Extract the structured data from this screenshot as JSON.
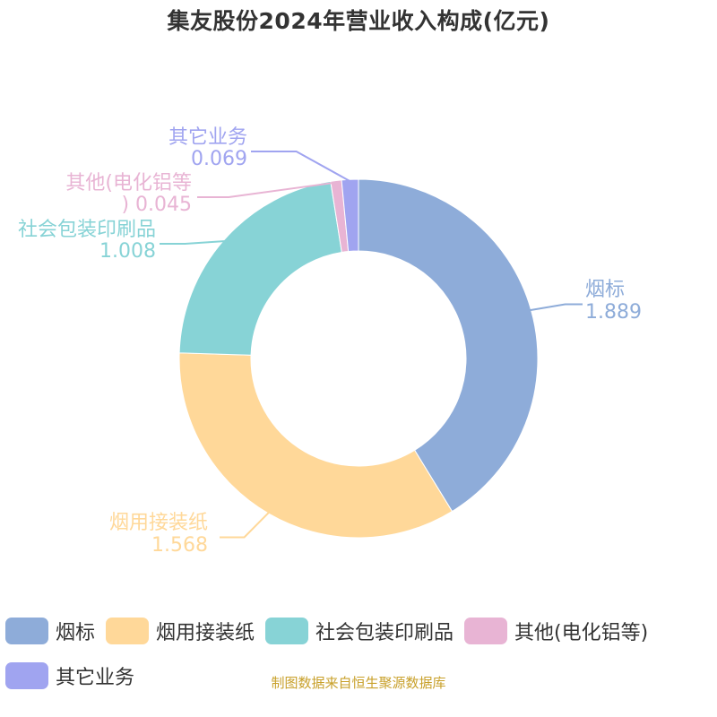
{
  "title": "集友股份2024年营业收入构成(亿元)",
  "source": "制图数据来自恒生聚源数据库",
  "chart_data": {
    "type": "pie",
    "variant": "donut",
    "title": "集友股份2024年营业收入构成(亿元)",
    "series": [
      {
        "name": "烟标",
        "value": 1.889,
        "color": "#8eacd9",
        "label_lines": [
          "烟标",
          "1.889"
        ]
      },
      {
        "name": "烟用接装纸",
        "value": 1.568,
        "color": "#ffd899",
        "label_lines": [
          "烟用接装纸",
          "1.568"
        ]
      },
      {
        "name": "社会包装印刷品",
        "value": 1.008,
        "color": "#87d3d6",
        "label_lines": [
          "社会包装印刷品",
          "1.008"
        ]
      },
      {
        "name": "其他(电化铝等)",
        "value": 0.045,
        "color": "#e8b4d4",
        "label_lines": [
          "其他(电化铝等",
          ") 0.045"
        ]
      },
      {
        "name": "其它业务",
        "value": 0.069,
        "color": "#a0a4f0",
        "label_lines": [
          "其它业务",
          "0.069"
        ]
      }
    ],
    "legend_position": "bottom"
  },
  "legend": [
    {
      "label": "烟标",
      "color": "#8eacd9"
    },
    {
      "label": "烟用接装纸",
      "color": "#ffd899"
    },
    {
      "label": "社会包装印刷品",
      "color": "#87d3d6"
    },
    {
      "label": "其他(电化铝等)",
      "color": "#e8b4d4"
    },
    {
      "label": "其它业务",
      "color": "#a0a4f0"
    }
  ]
}
